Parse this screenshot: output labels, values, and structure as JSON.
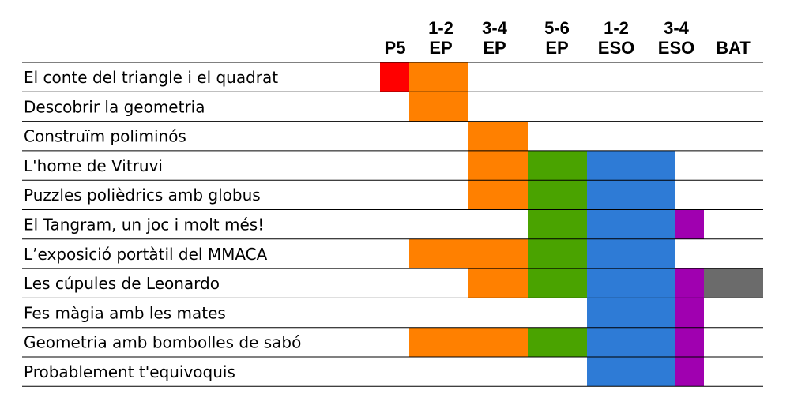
{
  "chart_data": {
    "type": "table",
    "columns": [
      {
        "label": [
          "P5"
        ],
        "color": "#ff0000"
      },
      {
        "label": [
          "1-2",
          "EP"
        ],
        "color": "#ff8000"
      },
      {
        "label": [
          "3-4",
          "EP"
        ],
        "color": "#ff8000"
      },
      {
        "label": [
          "5-6",
          "EP"
        ],
        "color": "#4aa300"
      },
      {
        "label": [
          "1-2",
          "ESO"
        ],
        "color": "#2e7bd6"
      },
      {
        "label": [
          "3-4",
          "ESO"
        ],
        "color": "#a000b0"
      },
      {
        "label": [
          "BAT"
        ],
        "color": "#6b6b6b"
      }
    ],
    "rows": [
      {
        "label": "El conte del triangle i el quadrat",
        "levels": [
          "P5",
          "1-2 EP"
        ]
      },
      {
        "label": "Descobrir la geometria",
        "levels": [
          "1-2 EP"
        ]
      },
      {
        "label": "Construïm poliminós",
        "levels": [
          "3-4 EP"
        ]
      },
      {
        "label": "L'home de Vitruvi",
        "levels": [
          "3-4 EP",
          "5-6 EP",
          "1-2 ESO"
        ]
      },
      {
        "label": "Puzzles polièdrics amb globus",
        "levels": [
          "3-4 EP",
          "5-6 EP",
          "1-2 ESO"
        ]
      },
      {
        "label": "El Tangram, un joc i molt més!",
        "levels": [
          "5-6 EP",
          "1-2 ESO",
          "3-4 ESO"
        ]
      },
      {
        "label": "L’exposició portàtil del MMACA",
        "levels": [
          "1-2 EP",
          "3-4 EP",
          "5-6 EP",
          "1-2 ESO"
        ]
      },
      {
        "label": "Les cúpules de Leonardo",
        "levels": [
          "3-4 EP",
          "5-6 EP",
          "1-2 ESO",
          "3-4 ESO",
          "BAT"
        ]
      },
      {
        "label": "Fes màgia amb les mates",
        "levels": [
          "1-2 ESO",
          "3-4 ESO"
        ]
      },
      {
        "label": "Geometria amb bombolles de sabó",
        "levels": [
          "1-2 EP",
          "3-4 EP",
          "5-6 EP",
          "1-2 ESO",
          "3-4 ESO"
        ]
      },
      {
        "label": "Probablement t'equivoquis",
        "levels": [
          "1-2 ESO",
          "3-4 ESO"
        ]
      }
    ]
  }
}
